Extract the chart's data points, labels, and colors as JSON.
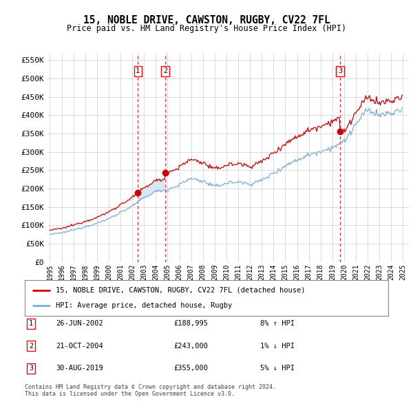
{
  "title": "15, NOBLE DRIVE, CAWSTON, RUGBY, CV22 7FL",
  "subtitle": "Price paid vs. HM Land Registry's House Price Index (HPI)",
  "ylim": [
    0,
    570000
  ],
  "yticks": [
    0,
    50000,
    100000,
    150000,
    200000,
    250000,
    300000,
    350000,
    400000,
    450000,
    500000,
    550000
  ],
  "ytick_labels": [
    "£0",
    "£50K",
    "£100K",
    "£150K",
    "£200K",
    "£250K",
    "£300K",
    "£350K",
    "£400K",
    "£450K",
    "£500K",
    "£550K"
  ],
  "xlim_start": 1994.8,
  "xlim_end": 2025.5,
  "sales": [
    {
      "num": 1,
      "date_x": 2002.48,
      "price": 188995,
      "label": "26-JUN-2002",
      "price_str": "£188,995",
      "hpi_diff": "8% ↑ HPI"
    },
    {
      "num": 2,
      "date_x": 2004.8,
      "price": 243000,
      "label": "21-OCT-2004",
      "price_str": "£243,000",
      "hpi_diff": "1% ↓ HPI"
    },
    {
      "num": 3,
      "date_x": 2019.66,
      "price": 355000,
      "label": "30-AUG-2019",
      "price_str": "£355,000",
      "hpi_diff": "5% ↓ HPI"
    }
  ],
  "legend_line1": "15, NOBLE DRIVE, CAWSTON, RUGBY, CV22 7FL (detached house)",
  "legend_line2": "HPI: Average price, detached house, Rugby",
  "footer": "Contains HM Land Registry data © Crown copyright and database right 2024.\nThis data is licensed under the Open Government Licence v3.0.",
  "red_color": "#cc0000",
  "blue_color": "#7aadd4",
  "shade_color": "#d6e8f5",
  "grid_color": "#cccccc",
  "background_color": "#ffffff",
  "hpi_anchors_years": [
    1995,
    1996,
    1997,
    1998,
    1999,
    2000,
    2001,
    2002,
    2003,
    2004,
    2005,
    2006,
    2007,
    2008,
    2009,
    2010,
    2011,
    2012,
    2013,
    2014,
    2015,
    2016,
    2017,
    2018,
    2019,
    2020,
    2021,
    2022,
    2023,
    2024,
    2025
  ],
  "hpi_anchors_vals": [
    75000,
    79000,
    87000,
    96000,
    105000,
    118000,
    135000,
    152000,
    175000,
    192000,
    197000,
    210000,
    228000,
    220000,
    205000,
    215000,
    218000,
    212000,
    222000,
    242000,
    262000,
    278000,
    292000,
    302000,
    312000,
    328000,
    375000,
    415000,
    400000,
    405000,
    415000
  ]
}
